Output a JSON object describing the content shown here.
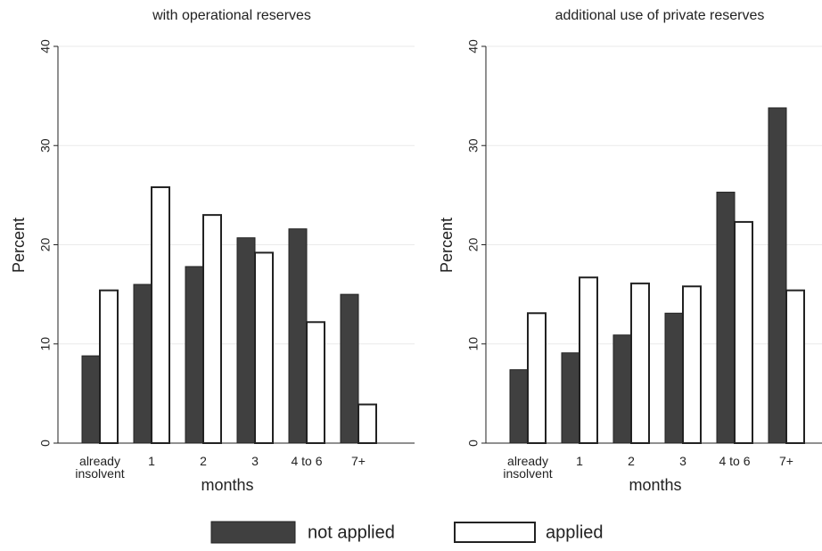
{
  "chart_data": [
    {
      "type": "bar",
      "title": "with operational reserves",
      "x_label": "months",
      "y_label": "Percent",
      "categories": [
        "already insolvent",
        "1",
        "2",
        "3",
        "4 to 6",
        "7+"
      ],
      "series": [
        {
          "name": "not applied",
          "color": "#404040",
          "values": [
            8.8,
            16,
            17.8,
            20.7,
            21.6,
            15
          ]
        },
        {
          "name": "applied",
          "color": "#ffffff",
          "values": [
            15.4,
            25.8,
            23,
            19.2,
            12.2,
            3.9
          ]
        }
      ],
      "ylim": [
        0,
        40
      ],
      "yticks": [
        0,
        10,
        20,
        30,
        40
      ],
      "grid": true
    },
    {
      "type": "bar",
      "title": "additional use of private reserves",
      "x_label": "months",
      "y_label": "Percent",
      "categories": [
        "already insolvent",
        "1",
        "2",
        "3",
        "4 to 6",
        "7+"
      ],
      "series": [
        {
          "name": "not applied",
          "color": "#404040",
          "values": [
            7.4,
            9.1,
            10.9,
            13.1,
            25.3,
            33.8
          ]
        },
        {
          "name": "applied",
          "color": "#ffffff",
          "values": [
            13.1,
            16.7,
            16.1,
            15.8,
            22.3,
            15.4
          ]
        }
      ],
      "ylim": [
        0,
        40
      ],
      "yticks": [
        0,
        10,
        20,
        30,
        40
      ],
      "grid": true
    }
  ]
}
